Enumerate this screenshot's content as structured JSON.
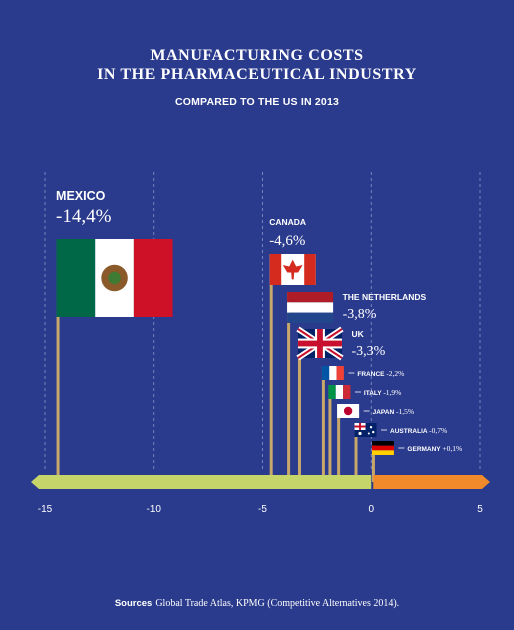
{
  "title_line1": "MANUFACTURING COSTS",
  "title_line2": "IN THE PHARMACEUTICAL INDUSTRY",
  "subtitle": "COMPARED TO THE US IN 2013",
  "source_label": "Sources",
  "source_text": "Global Trade Atlas, KPMG (Competitive Alternatives 2014).",
  "colors": {
    "background": "#2a3a8c",
    "negative_bar": "#c6d56a",
    "positive_bar": "#f08a2a",
    "pole": "#c8a76a",
    "grid": "#8b95c8"
  },
  "chart_data": {
    "type": "bar",
    "categories": [
      "MEXICO",
      "CANADA",
      "THE NETHERLANDS",
      "UK",
      "FRANCE",
      "ITALY",
      "JAPAN",
      "AUSTRALIA",
      "GERMANY"
    ],
    "values": [
      -14.4,
      -4.6,
      -3.8,
      -3.3,
      -2.2,
      -1.9,
      -1.5,
      -0.7,
      0.1
    ],
    "value_labels": [
      "-14,4%",
      "-4,6%",
      "-3,8%",
      "-3,3%",
      "-2,2%",
      "-1,9%",
      "-1,5%",
      "-0,7%",
      "+0,1%"
    ],
    "flags": [
      "mexico-flag",
      "canada-flag",
      "netherlands-flag",
      "uk-flag",
      "france-flag",
      "italy-flag",
      "japan-flag",
      "australia-flag",
      "germany-flag"
    ],
    "xlim": [
      -15,
      5
    ],
    "xticks": [
      "-15",
      "-10",
      "-5",
      "0",
      "5"
    ],
    "grid": true,
    "title": "MANUFACTURING COSTS IN THE PHARMACEUTICAL INDUSTRY",
    "subtitle": "COMPARED TO THE US IN 2013"
  }
}
